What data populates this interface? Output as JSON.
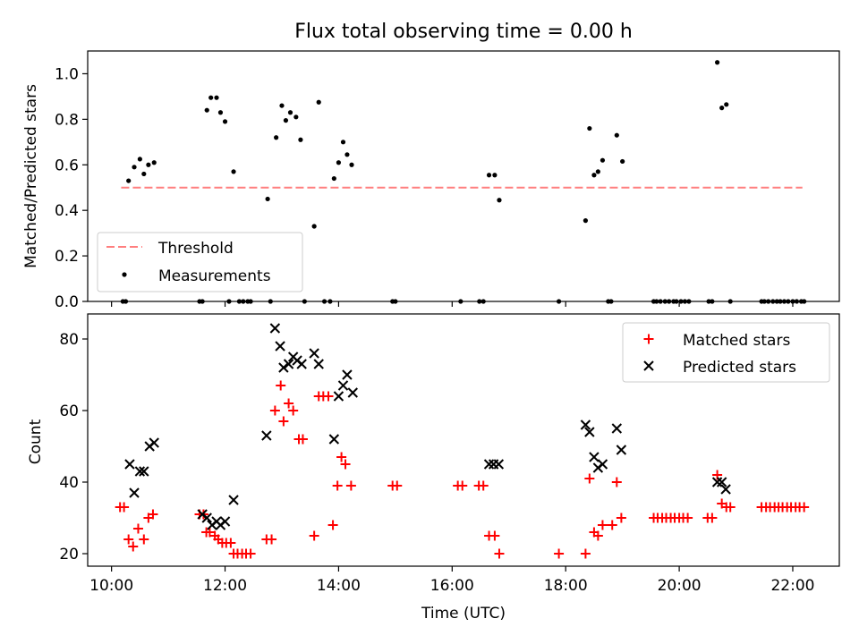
{
  "colors": {
    "threshold": "#ff7f7f",
    "measurements": "#000000",
    "matched": "#ff0000",
    "predicted": "#000000",
    "axes": "#000000"
  },
  "chart_data": [
    {
      "type": "scatter",
      "title": "Flux total observing time = 0.00 h",
      "xlabel": "",
      "ylabel": "Matched/Predicted stars",
      "xlim": [
        9.58,
        22.82
      ],
      "ylim": [
        0,
        1.1
      ],
      "yticks": [
        "0.0",
        "0.2",
        "0.4",
        "0.6",
        "0.8",
        "1.0"
      ],
      "legend_position": "lower left",
      "threshold": {
        "name": "Threshold",
        "y": 0.5,
        "x_range": [
          10.17,
          22.17
        ],
        "style": "dashed"
      },
      "series": [
        {
          "name": "Measurements",
          "points": [
            [
              10.2,
              0
            ],
            [
              10.25,
              0
            ],
            [
              10.3,
              0.53
            ],
            [
              10.4,
              0.59
            ],
            [
              10.5,
              0.625
            ],
            [
              10.57,
              0.56
            ],
            [
              10.65,
              0.6
            ],
            [
              10.75,
              0.61
            ],
            [
              11.55,
              0
            ],
            [
              11.6,
              0
            ],
            [
              11.68,
              0.84
            ],
            [
              11.75,
              0.895
            ],
            [
              11.85,
              0.895
            ],
            [
              11.92,
              0.83
            ],
            [
              12.0,
              0.79
            ],
            [
              12.07,
              0
            ],
            [
              12.15,
              0.57
            ],
            [
              12.25,
              0
            ],
            [
              12.32,
              0
            ],
            [
              12.4,
              0
            ],
            [
              12.45,
              0
            ],
            [
              12.75,
              0.45
            ],
            [
              12.8,
              0
            ],
            [
              12.9,
              0.72
            ],
            [
              13.0,
              0.86
            ],
            [
              13.07,
              0.795
            ],
            [
              13.15,
              0.83
            ],
            [
              13.25,
              0.81
            ],
            [
              13.33,
              0.71
            ],
            [
              13.4,
              0
            ],
            [
              13.57,
              0.33
            ],
            [
              13.65,
              0.875
            ],
            [
              13.75,
              0
            ],
            [
              13.85,
              0
            ],
            [
              13.92,
              0.54
            ],
            [
              14.0,
              0.61
            ],
            [
              14.08,
              0.7
            ],
            [
              14.15,
              0.645
            ],
            [
              14.23,
              0.6
            ],
            [
              14.95,
              0
            ],
            [
              15.0,
              0
            ],
            [
              16.15,
              0
            ],
            [
              16.48,
              0
            ],
            [
              16.55,
              0
            ],
            [
              16.65,
              0.555
            ],
            [
              16.75,
              0.555
            ],
            [
              16.83,
              0.445
            ],
            [
              17.88,
              0
            ],
            [
              18.35,
              0.355
            ],
            [
              18.42,
              0.76
            ],
            [
              18.5,
              0.555
            ],
            [
              18.57,
              0.57
            ],
            [
              18.65,
              0.62
            ],
            [
              18.75,
              0
            ],
            [
              18.8,
              0
            ],
            [
              18.9,
              0.73
            ],
            [
              19.0,
              0.615
            ],
            [
              19.55,
              0
            ],
            [
              19.6,
              0
            ],
            [
              19.67,
              0
            ],
            [
              19.75,
              0
            ],
            [
              19.82,
              0
            ],
            [
              19.9,
              0
            ],
            [
              19.95,
              0
            ],
            [
              20.03,
              0
            ],
            [
              20.1,
              0
            ],
            [
              20.17,
              0
            ],
            [
              20.52,
              0
            ],
            [
              20.58,
              0
            ],
            [
              20.67,
              1.05
            ],
            [
              20.75,
              0.85
            ],
            [
              20.83,
              0.865
            ],
            [
              20.9,
              0
            ],
            [
              21.45,
              0
            ],
            [
              21.5,
              0
            ],
            [
              21.57,
              0
            ],
            [
              21.65,
              0
            ],
            [
              21.72,
              0
            ],
            [
              21.78,
              0
            ],
            [
              21.85,
              0
            ],
            [
              21.92,
              0
            ],
            [
              22.0,
              0
            ],
            [
              22.07,
              0
            ],
            [
              22.15,
              0
            ],
            [
              22.2,
              0
            ]
          ]
        }
      ]
    },
    {
      "type": "scatter",
      "title": "",
      "xlabel": "Time (UTC)",
      "ylabel": "Count",
      "xlim": [
        9.58,
        22.82
      ],
      "ylim": [
        16.5,
        87
      ],
      "yticks": [
        "20",
        "40",
        "60",
        "80"
      ],
      "xticks": [
        "10:00",
        "12:00",
        "14:00",
        "16:00",
        "18:00",
        "20:00",
        "22:00"
      ],
      "legend_position": "upper right",
      "series": [
        {
          "name": "Matched stars",
          "marker": "plus",
          "points": [
            [
              10.15,
              33
            ],
            [
              10.22,
              33
            ],
            [
              10.3,
              24
            ],
            [
              10.38,
              22
            ],
            [
              10.47,
              27
            ],
            [
              10.57,
              24
            ],
            [
              10.65,
              30
            ],
            [
              10.73,
              31
            ],
            [
              11.55,
              31
            ],
            [
              11.62,
              31
            ],
            [
              11.67,
              26
            ],
            [
              11.73,
              26
            ],
            [
              11.82,
              25
            ],
            [
              11.88,
              24
            ],
            [
              11.95,
              23
            ],
            [
              12.02,
              23
            ],
            [
              12.1,
              23
            ],
            [
              12.15,
              20
            ],
            [
              12.22,
              20
            ],
            [
              12.3,
              20
            ],
            [
              12.37,
              20
            ],
            [
              12.45,
              20
            ],
            [
              12.73,
              24
            ],
            [
              12.82,
              24
            ],
            [
              12.88,
              60
            ],
            [
              12.98,
              67
            ],
            [
              13.03,
              57
            ],
            [
              13.12,
              62
            ],
            [
              13.2,
              60
            ],
            [
              13.3,
              52
            ],
            [
              13.37,
              52
            ],
            [
              13.57,
              25
            ],
            [
              13.65,
              64
            ],
            [
              13.73,
              64
            ],
            [
              13.82,
              64
            ],
            [
              13.9,
              28
            ],
            [
              13.98,
              39
            ],
            [
              14.05,
              47
            ],
            [
              14.12,
              45
            ],
            [
              14.22,
              39
            ],
            [
              14.95,
              39
            ],
            [
              15.03,
              39
            ],
            [
              16.1,
              39
            ],
            [
              16.18,
              39
            ],
            [
              16.47,
              39
            ],
            [
              16.55,
              39
            ],
            [
              16.65,
              25
            ],
            [
              16.75,
              25
            ],
            [
              16.83,
              20
            ],
            [
              17.88,
              20
            ],
            [
              18.35,
              20
            ],
            [
              18.42,
              41
            ],
            [
              18.5,
              26
            ],
            [
              18.57,
              25
            ],
            [
              18.65,
              28
            ],
            [
              18.82,
              28
            ],
            [
              18.9,
              40
            ],
            [
              18.98,
              30
            ],
            [
              19.55,
              30
            ],
            [
              19.62,
              30
            ],
            [
              19.7,
              30
            ],
            [
              19.77,
              30
            ],
            [
              19.85,
              30
            ],
            [
              19.92,
              30
            ],
            [
              20.0,
              30
            ],
            [
              20.07,
              30
            ],
            [
              20.15,
              30
            ],
            [
              20.5,
              30
            ],
            [
              20.58,
              30
            ],
            [
              20.67,
              42
            ],
            [
              20.75,
              34
            ],
            [
              20.83,
              33
            ],
            [
              20.9,
              33
            ],
            [
              21.45,
              33
            ],
            [
              21.53,
              33
            ],
            [
              21.6,
              33
            ],
            [
              21.68,
              33
            ],
            [
              21.75,
              33
            ],
            [
              21.82,
              33
            ],
            [
              21.9,
              33
            ],
            [
              21.97,
              33
            ],
            [
              22.05,
              33
            ],
            [
              22.12,
              33
            ],
            [
              22.2,
              33
            ]
          ]
        },
        {
          "name": "Predicted stars",
          "marker": "x",
          "points": [
            [
              10.32,
              45
            ],
            [
              10.4,
              37
            ],
            [
              10.5,
              43
            ],
            [
              10.57,
              43
            ],
            [
              10.67,
              50
            ],
            [
              10.75,
              51
            ],
            [
              11.6,
              31
            ],
            [
              11.68,
              30
            ],
            [
              11.77,
              28
            ],
            [
              11.85,
              29
            ],
            [
              11.92,
              28
            ],
            [
              12.0,
              29
            ],
            [
              12.15,
              35
            ],
            [
              12.73,
              53
            ],
            [
              12.88,
              83
            ],
            [
              12.97,
              78
            ],
            [
              13.03,
              72
            ],
            [
              13.12,
              73
            ],
            [
              13.2,
              75
            ],
            [
              13.27,
              74
            ],
            [
              13.35,
              73
            ],
            [
              13.57,
              76
            ],
            [
              13.65,
              73
            ],
            [
              13.92,
              52
            ],
            [
              14.0,
              64
            ],
            [
              14.08,
              67
            ],
            [
              14.15,
              70
            ],
            [
              14.25,
              65
            ],
            [
              16.65,
              45
            ],
            [
              16.73,
              45
            ],
            [
              16.82,
              45
            ],
            [
              18.35,
              56
            ],
            [
              18.42,
              54
            ],
            [
              18.5,
              47
            ],
            [
              18.57,
              44
            ],
            [
              18.65,
              45
            ],
            [
              18.9,
              55
            ],
            [
              18.98,
              49
            ],
            [
              20.67,
              40
            ],
            [
              20.75,
              40
            ],
            [
              20.82,
              38
            ]
          ]
        }
      ]
    }
  ]
}
